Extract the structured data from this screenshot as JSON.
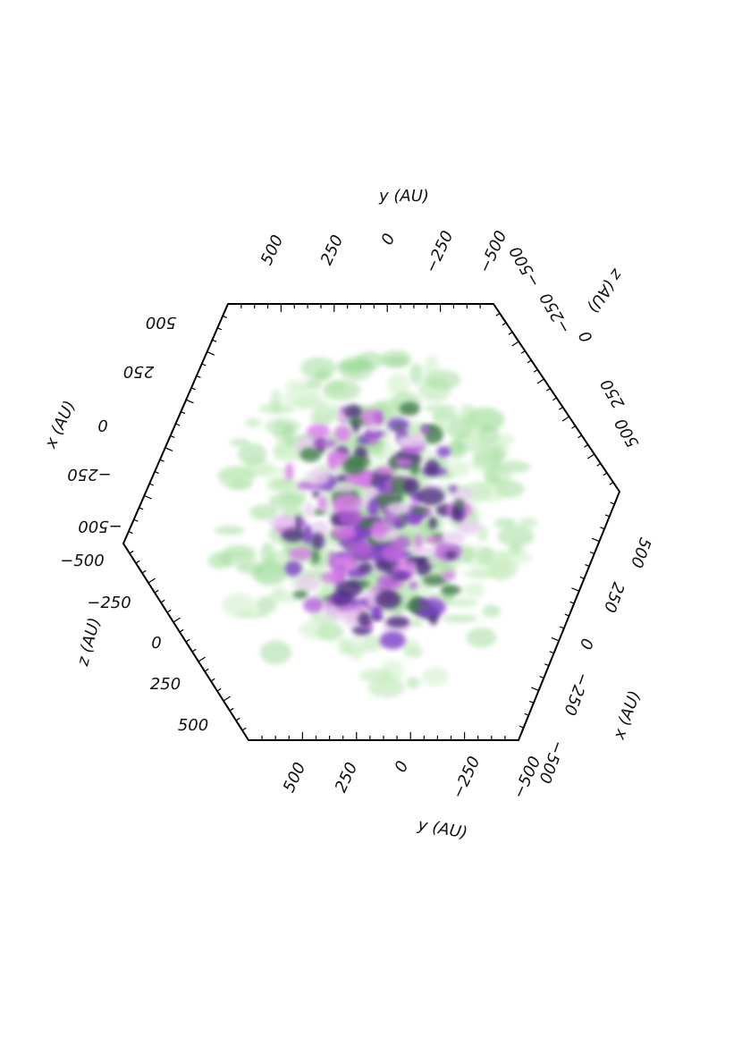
{
  "axes": [
    {
      "label": "y (AU)",
      "ticks": [
        "500",
        "250",
        "0",
        "−250",
        "−500"
      ]
    },
    {
      "label": "z (AU)",
      "ticks": [
        "−500",
        "−250",
        "0",
        "250",
        "500"
      ]
    },
    {
      "label": "x (AU)",
      "ticks": [
        "500",
        "250",
        "0",
        "−250",
        "−500"
      ]
    },
    {
      "label": "z (AU)",
      "ticks": [
        "−500",
        "−250",
        "0",
        "250",
        "500"
      ]
    },
    {
      "label": "y (AU)",
      "ticks": [
        "500",
        "250",
        "0",
        "−250",
        "−500"
      ]
    },
    {
      "label": "x (AU)",
      "ticks": [
        "500",
        "250",
        "0",
        "−250",
        "−500"
      ]
    }
  ]
}
